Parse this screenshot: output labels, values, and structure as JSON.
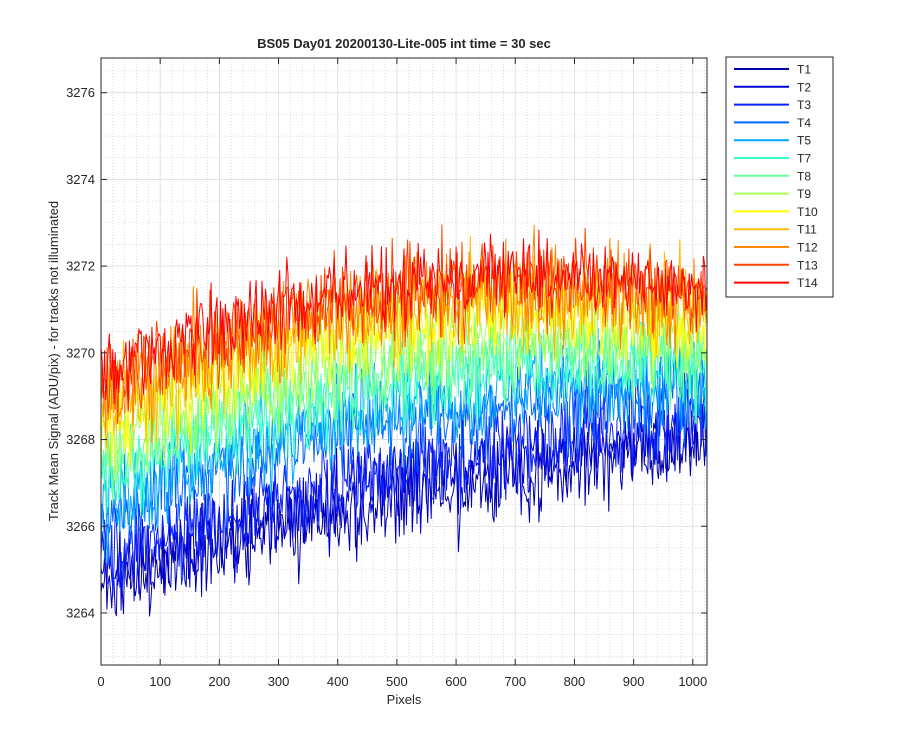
{
  "chart_data": {
    "type": "line",
    "title": "BS05 Day01 20200130-Lite-005 int time = 30 sec",
    "xlabel": "Pixels",
    "ylabel": "Track Mean Signal (ADU/pix) - for tracks not illuminated",
    "xlim": [
      0,
      1024
    ],
    "ylim": [
      3262.8,
      3276.8
    ],
    "xticks": [
      0,
      100,
      200,
      300,
      400,
      500,
      600,
      700,
      800,
      900,
      1000
    ],
    "yticks": [
      3264,
      3266,
      3268,
      3270,
      3272,
      3274,
      3276
    ],
    "grid": true,
    "minor_grid": true,
    "legend_position": "outside-top-right",
    "series": [
      {
        "name": "T1",
        "color": "#0000aa",
        "start": 3264.6,
        "mid": 3267.0,
        "end": 3267.8,
        "noise": 1.3
      },
      {
        "name": "T2",
        "color": "#0000d4",
        "start": 3264.9,
        "mid": 3267.4,
        "end": 3268.2,
        "noise": 1.3
      },
      {
        "name": "T3",
        "color": "#0a22ff",
        "start": 3265.3,
        "mid": 3267.9,
        "end": 3268.5,
        "noise": 1.3
      },
      {
        "name": "T4",
        "color": "#0066ff",
        "start": 3266.2,
        "mid": 3269.3,
        "end": 3269.0,
        "noise": 1.3
      },
      {
        "name": "T5",
        "color": "#00a8ff",
        "start": 3266.5,
        "mid": 3269.6,
        "end": 3269.2,
        "noise": 1.3
      },
      {
        "name": "T7",
        "color": "#33ffcc",
        "start": 3267.0,
        "mid": 3270.2,
        "end": 3269.6,
        "noise": 1.3
      },
      {
        "name": "T8",
        "color": "#66ff99",
        "start": 3267.4,
        "mid": 3270.6,
        "end": 3269.9,
        "noise": 1.3
      },
      {
        "name": "T9",
        "color": "#aaff55",
        "start": 3267.8,
        "mid": 3271.2,
        "end": 3270.3,
        "noise": 1.3
      },
      {
        "name": "T10",
        "color": "#ffff00",
        "start": 3268.3,
        "mid": 3271.8,
        "end": 3270.7,
        "noise": 1.4
      },
      {
        "name": "T11",
        "color": "#ffbb00",
        "start": 3268.6,
        "mid": 3272.2,
        "end": 3270.9,
        "noise": 1.4
      },
      {
        "name": "T12",
        "color": "#ff8800",
        "start": 3268.9,
        "mid": 3272.5,
        "end": 3271.1,
        "noise": 1.4
      },
      {
        "name": "T13",
        "color": "#ff4400",
        "start": 3269.2,
        "mid": 3272.7,
        "end": 3271.2,
        "noise": 1.3
      },
      {
        "name": "T14",
        "color": "#ff0000",
        "start": 3269.5,
        "mid": 3272.8,
        "end": 3271.3,
        "noise": 1.1
      }
    ]
  }
}
